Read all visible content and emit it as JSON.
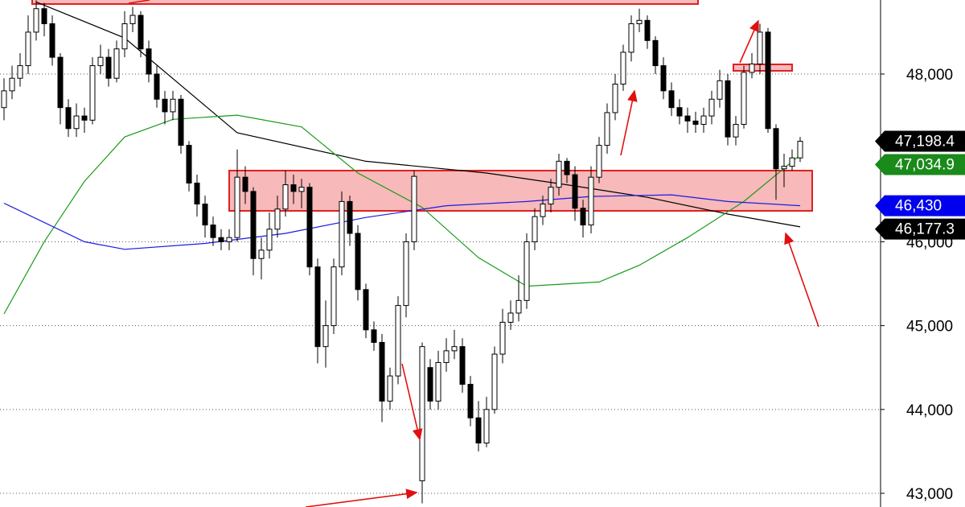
{
  "chart_data": {
    "type": "candlestick",
    "xlim": [
      -0.5,
      109
    ],
    "ylim": [
      42837,
      48883
    ],
    "yticks": [
      {
        "value": 43000,
        "label": "43,000"
      },
      {
        "value": 44000,
        "label": "44,000"
      },
      {
        "value": 45000,
        "label": "45,000"
      },
      {
        "value": 46000,
        "label": "46,000"
      },
      {
        "value": 48000,
        "label": "48,000"
      }
    ],
    "grid": true,
    "up_color": "#ffffff",
    "down_color": "#000000",
    "candles": [
      [
        47600,
        47950,
        47450,
        47800
      ],
      [
        47800,
        48100,
        47700,
        47950
      ],
      [
        47950,
        48250,
        47850,
        48100
      ],
      [
        48100,
        48700,
        48000,
        48500
      ],
      [
        48500,
        48880,
        48400,
        48780
      ],
      [
        48780,
        48850,
        48450,
        48600
      ],
      [
        48600,
        48700,
        48100,
        48200
      ],
      [
        48200,
        48250,
        47400,
        47600
      ],
      [
        47600,
        47700,
        47250,
        47350
      ],
      [
        47350,
        47650,
        47250,
        47500
      ],
      [
        47500,
        47600,
        47300,
        47450
      ],
      [
        47450,
        48200,
        47400,
        48100
      ],
      [
        48100,
        48350,
        48000,
        48200
      ],
      [
        48200,
        48300,
        47850,
        47950
      ],
      [
        47950,
        48400,
        47900,
        48300
      ],
      [
        48300,
        48750,
        48200,
        48600
      ],
      [
        48600,
        48800,
        48500,
        48700
      ],
      [
        48700,
        48750,
        48200,
        48300
      ],
      [
        48300,
        48400,
        47900,
        48000
      ],
      [
        48000,
        48100,
        47600,
        47700
      ],
      [
        47700,
        47800,
        47400,
        47550
      ],
      [
        47550,
        47800,
        47450,
        47700
      ],
      [
        47700,
        47750,
        47050,
        47150
      ],
      [
        47150,
        47200,
        46600,
        46700
      ],
      [
        46700,
        46800,
        46300,
        46450
      ],
      [
        46450,
        46550,
        46050,
        46200
      ],
      [
        46200,
        46300,
        45950,
        46050
      ],
      [
        46050,
        46150,
        45900,
        46000
      ],
      [
        46000,
        46150,
        45900,
        46050
      ],
      [
        46050,
        47100,
        46000,
        46770
      ],
      [
        46770,
        46900,
        46450,
        46600
      ],
      [
        46600,
        46650,
        45600,
        45800
      ],
      [
        45800,
        46050,
        45550,
        45900
      ],
      [
        45900,
        46350,
        45800,
        46150
      ],
      [
        46150,
        46550,
        46050,
        46390
      ],
      [
        46390,
        46850,
        46300,
        46680
      ],
      [
        46680,
        46800,
        46450,
        46600
      ],
      [
        46600,
        46750,
        46400,
        46650
      ],
      [
        46650,
        46700,
        45600,
        45700
      ],
      [
        45700,
        45800,
        44550,
        44750
      ],
      [
        44750,
        45300,
        44500,
        45000
      ],
      [
        45000,
        45800,
        44900,
        45700
      ],
      [
        45700,
        46600,
        45600,
        46480
      ],
      [
        46480,
        46550,
        45950,
        46100
      ],
      [
        46100,
        46200,
        45300,
        45430
      ],
      [
        45430,
        45500,
        44850,
        44950
      ],
      [
        44950,
        45050,
        44700,
        44800
      ],
      [
        44800,
        44900,
        43850,
        44100
      ],
      [
        44100,
        44500,
        44000,
        44400
      ],
      [
        44400,
        45350,
        44300,
        45240
      ],
      [
        45240,
        46100,
        45100,
        46000
      ],
      [
        46000,
        46850,
        45900,
        46780
      ],
      [
        43150,
        44800,
        42880,
        44750
      ],
      [
        44500,
        44600,
        44000,
        44100
      ],
      [
        44100,
        44700,
        44000,
        44560
      ],
      [
        44560,
        44850,
        44450,
        44700
      ],
      [
        44700,
        44950,
        44600,
        44750
      ],
      [
        44750,
        44850,
        44200,
        44300
      ],
      [
        44300,
        44400,
        43800,
        43900
      ],
      [
        43900,
        44100,
        43500,
        43600
      ],
      [
        43600,
        44150,
        43550,
        44000
      ],
      [
        44000,
        44750,
        43950,
        44660
      ],
      [
        44660,
        45200,
        44550,
        45040
      ],
      [
        45040,
        45300,
        44950,
        45150
      ],
      [
        45150,
        45600,
        45050,
        45300
      ],
      [
        45300,
        46100,
        45200,
        46000
      ],
      [
        46000,
        46400,
        45900,
        46300
      ],
      [
        46300,
        46550,
        46200,
        46450
      ],
      [
        46450,
        46750,
        46350,
        46650
      ],
      [
        46650,
        47050,
        46550,
        46960
      ],
      [
        46960,
        47000,
        46700,
        46800
      ],
      [
        46800,
        46900,
        46250,
        46400
      ],
      [
        46400,
        46500,
        46050,
        46200
      ],
      [
        46200,
        46900,
        46100,
        46770
      ],
      [
        46770,
        47250,
        46700,
        47150
      ],
      [
        47150,
        47650,
        47050,
        47540
      ],
      [
        47540,
        48000,
        47450,
        47880
      ],
      [
        47880,
        48350,
        47800,
        48260
      ],
      [
        48260,
        48700,
        48150,
        48600
      ],
      [
        48600,
        48780,
        48500,
        48640
      ],
      [
        48640,
        48700,
        48300,
        48400
      ],
      [
        48400,
        48450,
        48000,
        48100
      ],
      [
        48100,
        48200,
        47700,
        47800
      ],
      [
        47800,
        47900,
        47500,
        47600
      ],
      [
        47600,
        47700,
        47400,
        47500
      ],
      [
        47500,
        47600,
        47300,
        47440
      ],
      [
        47440,
        47550,
        47300,
        47400
      ],
      [
        47400,
        47600,
        47300,
        47500
      ],
      [
        47500,
        47800,
        47400,
        47700
      ],
      [
        47700,
        48050,
        47600,
        47920
      ],
      [
        47920,
        48000,
        47150,
        47250
      ],
      [
        47250,
        47500,
        47150,
        47400
      ],
      [
        47400,
        48100,
        47350,
        48020
      ],
      [
        48020,
        48250,
        47950,
        48120
      ],
      [
        48120,
        48600,
        48000,
        48500
      ],
      [
        48500,
        48550,
        47300,
        47350
      ],
      [
        47350,
        47400,
        46500,
        46870
      ],
      [
        46870,
        47050,
        46650,
        46900
      ],
      [
        46900,
        47100,
        46850,
        47000
      ],
      [
        47000,
        47250,
        46950,
        47198.4
      ]
    ],
    "series": [
      {
        "color": "#000000",
        "x": [
          4,
          15,
          29,
          45,
          60,
          70,
          80,
          90,
          99
        ],
        "values": [
          48860,
          48430,
          47300,
          46960,
          46820,
          46680,
          46530,
          46330,
          46177.3
        ]
      },
      {
        "color": "#1a9a1a",
        "x": [
          0,
          5,
          10,
          15,
          21,
          29,
          37,
          44,
          52,
          59,
          65,
          74,
          79,
          85,
          92,
          99
        ],
        "values": [
          45140,
          46000,
          46720,
          47250,
          47460,
          47510,
          47370,
          46820,
          46410,
          45810,
          45470,
          45520,
          45720,
          46050,
          46480,
          47034.9
        ]
      },
      {
        "color": "#1a1ae6",
        "x": [
          0,
          10,
          15,
          25,
          35,
          45,
          55,
          65,
          73,
          83,
          90,
          99
        ],
        "values": [
          46460,
          46000,
          45910,
          45980,
          46100,
          46290,
          46430,
          46480,
          46540,
          46560,
          46480,
          46430
        ]
      }
    ],
    "price_tags": [
      {
        "value": 47198.4,
        "label": "47,198.4",
        "color": "#000000"
      },
      {
        "value": 47034.9,
        "label": "47,034.9",
        "color": "#1a8a1a"
      },
      {
        "value": 46430,
        "label": "46,430",
        "color": "#0000ee"
      },
      {
        "value": 46177.3,
        "label": "46,177.3",
        "color": "#000000"
      }
    ]
  }
}
